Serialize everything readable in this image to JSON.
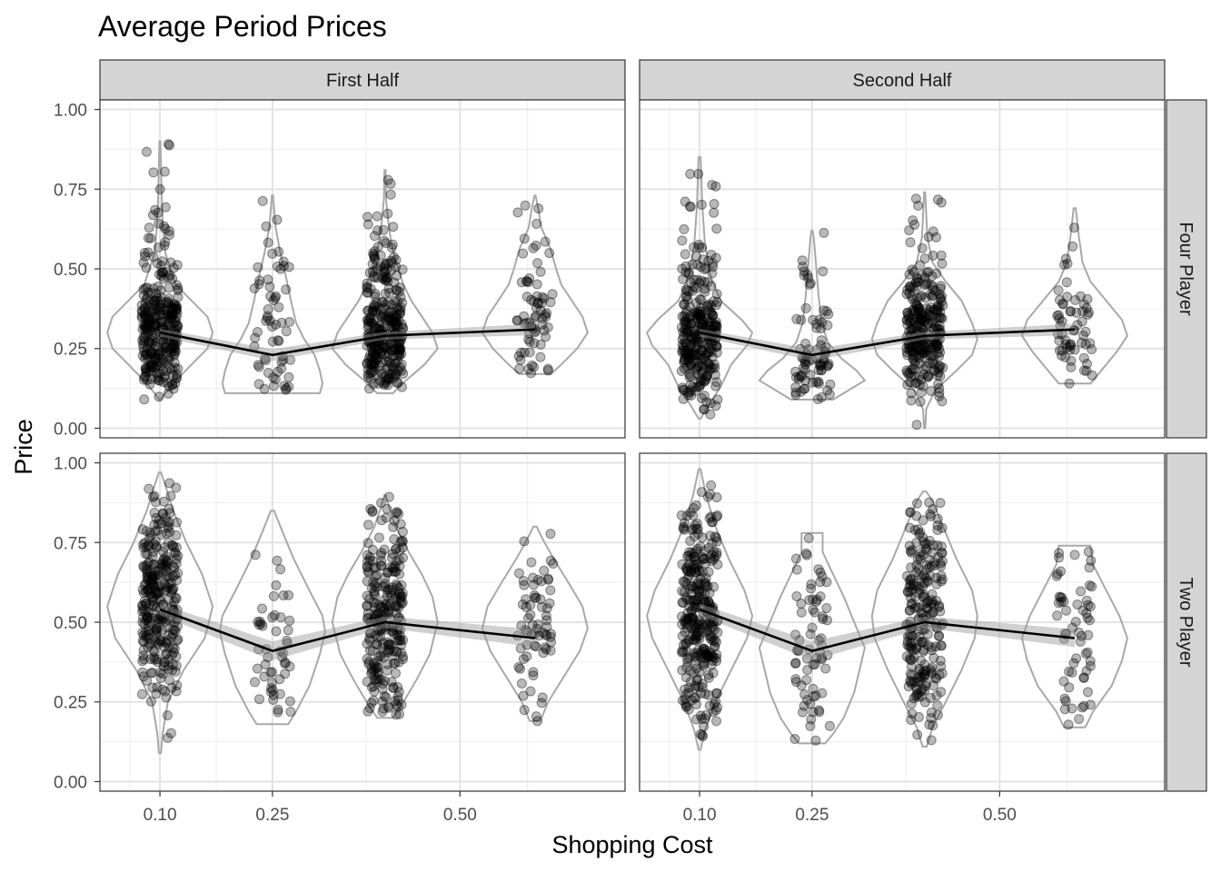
{
  "chart_data": {
    "type": "scatter",
    "title": "Average Period Prices",
    "xlabel": "Shopping Cost",
    "ylabel": "Price",
    "x_tick_labels": [
      "0.10",
      "0.25",
      "0.50"
    ],
    "x_tick_values": [
      0.1,
      0.25,
      0.5
    ],
    "y_tick_labels": [
      "0.00",
      "0.25",
      "0.50",
      "0.75",
      "1.00"
    ],
    "y_tick_values": [
      0,
      0.25,
      0.5,
      0.75,
      1.0
    ],
    "xlim": [
      0.02,
      0.72
    ],
    "ylim": [
      -0.03,
      1.03
    ],
    "grid": true,
    "column_facets": [
      "First Half",
      "Second Half"
    ],
    "row_facets": [
      "Four Player",
      "Two Player"
    ],
    "shopping_costs": [
      0.1,
      0.25,
      0.4,
      0.6
    ],
    "layers": [
      "violin",
      "jittered points",
      "mean line with confidence band"
    ],
    "panels": [
      {
        "column": "First Half",
        "row": "Four Player",
        "means": [
          0.3,
          0.23,
          0.29,
          0.31
        ],
        "ci_halfwidth": [
          0.012,
          0.018,
          0.012,
          0.018
        ],
        "point_counts": [
          320,
          60,
          320,
          70
        ],
        "ranges": [
          [
            0.09,
            0.9
          ],
          [
            0.11,
            0.73
          ],
          [
            0.11,
            0.81
          ],
          [
            0.17,
            0.73
          ]
        ],
        "violin_profiles": [
          [
            [
              0.09,
              0.01
            ],
            [
              0.14,
              0.25
            ],
            [
              0.2,
              0.6
            ],
            [
              0.25,
              0.9
            ],
            [
              0.3,
              1.0
            ],
            [
              0.35,
              0.9
            ],
            [
              0.4,
              0.6
            ],
            [
              0.45,
              0.3
            ],
            [
              0.55,
              0.1
            ],
            [
              0.65,
              0.05
            ],
            [
              0.75,
              0.03
            ],
            [
              0.9,
              0.01
            ]
          ],
          [
            [
              0.11,
              0.9
            ],
            [
              0.14,
              0.95
            ],
            [
              0.18,
              0.9
            ],
            [
              0.23,
              0.8
            ],
            [
              0.28,
              0.6
            ],
            [
              0.33,
              0.45
            ],
            [
              0.4,
              0.35
            ],
            [
              0.48,
              0.25
            ],
            [
              0.55,
              0.15
            ],
            [
              0.63,
              0.06
            ],
            [
              0.73,
              0.01
            ]
          ],
          [
            [
              0.11,
              0.15
            ],
            [
              0.15,
              0.4
            ],
            [
              0.2,
              0.75
            ],
            [
              0.25,
              1.0
            ],
            [
              0.3,
              0.9
            ],
            [
              0.35,
              0.7
            ],
            [
              0.4,
              0.5
            ],
            [
              0.45,
              0.35
            ],
            [
              0.5,
              0.25
            ],
            [
              0.58,
              0.12
            ],
            [
              0.65,
              0.06
            ],
            [
              0.72,
              0.02
            ],
            [
              0.81,
              0.01
            ]
          ],
          [
            [
              0.17,
              0.3
            ],
            [
              0.2,
              0.5
            ],
            [
              0.25,
              0.8
            ],
            [
              0.3,
              1.0
            ],
            [
              0.35,
              0.9
            ],
            [
              0.4,
              0.7
            ],
            [
              0.45,
              0.5
            ],
            [
              0.5,
              0.4
            ],
            [
              0.56,
              0.3
            ],
            [
              0.63,
              0.12
            ],
            [
              0.69,
              0.06
            ],
            [
              0.73,
              0.01
            ]
          ]
        ]
      },
      {
        "column": "Second Half",
        "row": "Four Player",
        "means": [
          0.3,
          0.23,
          0.29,
          0.31
        ],
        "ci_halfwidth": [
          0.012,
          0.018,
          0.012,
          0.018
        ],
        "point_counts": [
          300,
          80,
          280,
          60
        ],
        "ranges": [
          [
            0.0,
            0.85
          ],
          [
            0.09,
            0.62
          ],
          [
            0.0,
            0.74
          ],
          [
            0.14,
            0.69
          ]
        ],
        "violin_profiles": [
          [
            [
              0.03,
              0.02
            ],
            [
              0.08,
              0.2
            ],
            [
              0.13,
              0.4
            ],
            [
              0.2,
              0.6
            ],
            [
              0.26,
              0.9
            ],
            [
              0.3,
              1.0
            ],
            [
              0.34,
              0.8
            ],
            [
              0.4,
              0.4
            ],
            [
              0.48,
              0.2
            ],
            [
              0.58,
              0.1
            ],
            [
              0.7,
              0.05
            ],
            [
              0.85,
              0.02
            ]
          ],
          [
            [
              0.09,
              0.4
            ],
            [
              0.12,
              0.7
            ],
            [
              0.15,
              1.0
            ],
            [
              0.18,
              0.85
            ],
            [
              0.22,
              0.55
            ],
            [
              0.27,
              0.3
            ],
            [
              0.33,
              0.18
            ],
            [
              0.42,
              0.12
            ],
            [
              0.5,
              0.08
            ],
            [
              0.6,
              0.03
            ],
            [
              0.62,
              0.01
            ]
          ],
          [
            [
              0.0,
              0.01
            ],
            [
              0.06,
              0.03
            ],
            [
              0.12,
              0.2
            ],
            [
              0.18,
              0.6
            ],
            [
              0.23,
              0.9
            ],
            [
              0.28,
              1.0
            ],
            [
              0.33,
              0.9
            ],
            [
              0.4,
              0.7
            ],
            [
              0.46,
              0.4
            ],
            [
              0.52,
              0.15
            ],
            [
              0.6,
              0.05
            ],
            [
              0.74,
              0.01
            ]
          ],
          [
            [
              0.14,
              0.3
            ],
            [
              0.18,
              0.5
            ],
            [
              0.24,
              0.8
            ],
            [
              0.29,
              1.0
            ],
            [
              0.34,
              0.9
            ],
            [
              0.4,
              0.6
            ],
            [
              0.46,
              0.3
            ],
            [
              0.52,
              0.15
            ],
            [
              0.6,
              0.08
            ],
            [
              0.69,
              0.02
            ]
          ]
        ]
      },
      {
        "column": "First Half",
        "row": "Two Player",
        "means": [
          0.54,
          0.41,
          0.5,
          0.45
        ],
        "ci_halfwidth": [
          0.018,
          0.03,
          0.018,
          0.028
        ],
        "point_counts": [
          300,
          50,
          260,
          70
        ],
        "ranges": [
          [
            0.09,
            0.97
          ],
          [
            0.18,
            0.85
          ],
          [
            0.2,
            0.9
          ],
          [
            0.19,
            0.8
          ]
        ],
        "violin_profiles": [
          [
            [
              0.09,
              0.02
            ],
            [
              0.15,
              0.05
            ],
            [
              0.25,
              0.15
            ],
            [
              0.35,
              0.45
            ],
            [
              0.45,
              0.85
            ],
            [
              0.55,
              1.0
            ],
            [
              0.65,
              0.8
            ],
            [
              0.75,
              0.5
            ],
            [
              0.85,
              0.25
            ],
            [
              0.93,
              0.1
            ],
            [
              0.97,
              0.02
            ]
          ],
          [
            [
              0.18,
              0.3
            ],
            [
              0.22,
              0.45
            ],
            [
              0.3,
              0.7
            ],
            [
              0.4,
              0.9
            ],
            [
              0.47,
              1.0
            ],
            [
              0.52,
              0.95
            ],
            [
              0.6,
              0.7
            ],
            [
              0.7,
              0.4
            ],
            [
              0.78,
              0.2
            ],
            [
              0.85,
              0.03
            ]
          ],
          [
            [
              0.2,
              0.15
            ],
            [
              0.25,
              0.35
            ],
            [
              0.32,
              0.6
            ],
            [
              0.4,
              0.85
            ],
            [
              0.5,
              1.0
            ],
            [
              0.58,
              0.9
            ],
            [
              0.65,
              0.7
            ],
            [
              0.72,
              0.45
            ],
            [
              0.8,
              0.2
            ],
            [
              0.86,
              0.08
            ],
            [
              0.9,
              0.01
            ]
          ],
          [
            [
              0.19,
              0.1
            ],
            [
              0.25,
              0.25
            ],
            [
              0.33,
              0.55
            ],
            [
              0.41,
              0.85
            ],
            [
              0.48,
              1.0
            ],
            [
              0.55,
              0.9
            ],
            [
              0.62,
              0.65
            ],
            [
              0.7,
              0.35
            ],
            [
              0.76,
              0.15
            ],
            [
              0.8,
              0.03
            ]
          ]
        ]
      },
      {
        "column": "Second Half",
        "row": "Two Player",
        "means": [
          0.54,
          0.41,
          0.5,
          0.45
        ],
        "ci_halfwidth": [
          0.018,
          0.03,
          0.018,
          0.028
        ],
        "point_counts": [
          320,
          70,
          240,
          60
        ],
        "ranges": [
          [
            0.1,
            0.98
          ],
          [
            0.12,
            0.78
          ],
          [
            0.11,
            0.91
          ],
          [
            0.17,
            0.74
          ]
        ],
        "violin_profiles": [
          [
            [
              0.1,
              0.02
            ],
            [
              0.16,
              0.1
            ],
            [
              0.25,
              0.3
            ],
            [
              0.35,
              0.6
            ],
            [
              0.45,
              0.9
            ],
            [
              0.52,
              1.0
            ],
            [
              0.6,
              0.85
            ],
            [
              0.7,
              0.55
            ],
            [
              0.8,
              0.3
            ],
            [
              0.9,
              0.12
            ],
            [
              0.98,
              0.02
            ]
          ],
          [
            [
              0.12,
              0.25
            ],
            [
              0.15,
              0.4
            ],
            [
              0.2,
              0.6
            ],
            [
              0.28,
              0.8
            ],
            [
              0.35,
              0.9
            ],
            [
              0.42,
              1.0
            ],
            [
              0.5,
              0.8
            ],
            [
              0.58,
              0.6
            ],
            [
              0.65,
              0.4
            ],
            [
              0.72,
              0.2
            ],
            [
              0.78,
              0.2
            ]
          ],
          [
            [
              0.11,
              0.04
            ],
            [
              0.17,
              0.15
            ],
            [
              0.25,
              0.4
            ],
            [
              0.35,
              0.7
            ],
            [
              0.45,
              0.95
            ],
            [
              0.52,
              1.0
            ],
            [
              0.6,
              0.9
            ],
            [
              0.7,
              0.6
            ],
            [
              0.8,
              0.35
            ],
            [
              0.88,
              0.15
            ],
            [
              0.91,
              0.03
            ]
          ],
          [
            [
              0.17,
              0.2
            ],
            [
              0.22,
              0.35
            ],
            [
              0.3,
              0.7
            ],
            [
              0.38,
              0.9
            ],
            [
              0.45,
              1.0
            ],
            [
              0.52,
              0.85
            ],
            [
              0.6,
              0.6
            ],
            [
              0.68,
              0.35
            ],
            [
              0.74,
              0.3
            ]
          ]
        ]
      }
    ]
  }
}
